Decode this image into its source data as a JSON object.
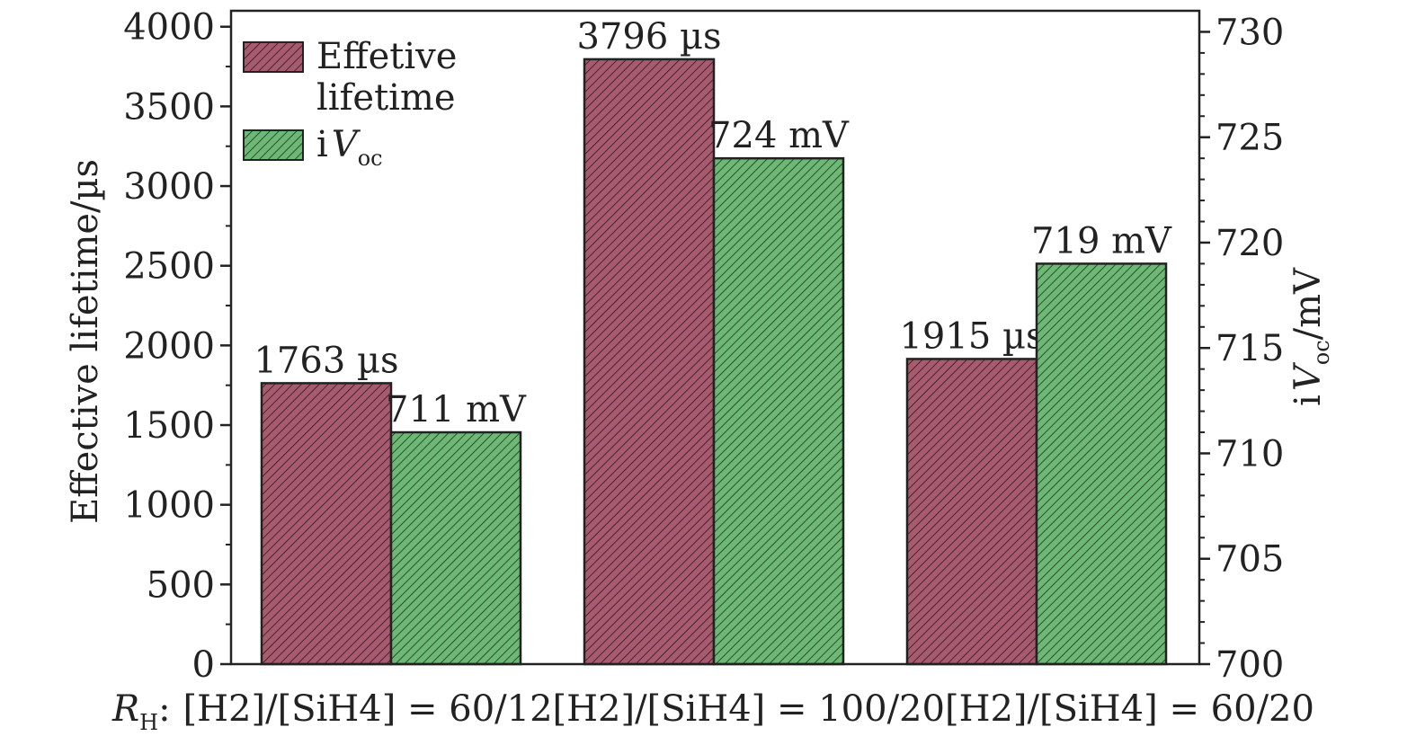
{
  "chart_data": {
    "type": "bar",
    "title": "",
    "xlabel_prefix": "R",
    "xlabel_prefix_sub": "H",
    "xlabel_colon": ":",
    "categories": [
      "[H2]/[SiH4] = 60/12",
      "[H2]/[SiH4] = 100/20",
      "[H2]/[SiH4] = 60/20"
    ],
    "series": [
      {
        "name": "Effetive lifetime",
        "axis": "left",
        "color": "#a85a6e",
        "values": [
          1763,
          3796,
          1915
        ],
        "labels": [
          "1763 µs",
          "3796 µs",
          "1915 µs"
        ]
      },
      {
        "name": "iVoc",
        "axis": "right",
        "color": "#6db874",
        "values": [
          711,
          724,
          719
        ],
        "labels": [
          "711 mV",
          "724 mV",
          "719 mV"
        ]
      }
    ],
    "left_axis": {
      "label": "Effective lifetime/µs",
      "ylim": [
        0,
        4100
      ],
      "ticks": [
        0,
        500,
        1000,
        1500,
        2000,
        2500,
        3000,
        3500,
        4000
      ]
    },
    "right_axis": {
      "label_prefix": "i",
      "label_var": "V",
      "label_sub": "oc",
      "label_suffix": "/mV",
      "ylim": [
        700,
        731
      ],
      "ticks": [
        700,
        705,
        710,
        715,
        720,
        725,
        730
      ]
    },
    "legend": {
      "position": "top-left",
      "entries": [
        {
          "line1": "Effetive",
          "line2": "lifetime"
        },
        {
          "prefix": "i",
          "var": "V",
          "sub": "oc"
        }
      ]
    }
  }
}
